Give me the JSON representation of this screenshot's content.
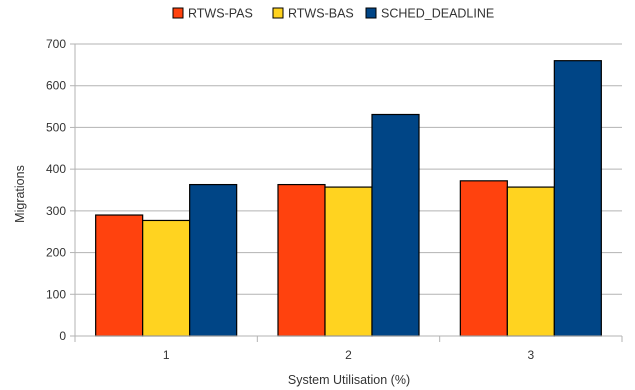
{
  "chart_data": {
    "type": "bar",
    "title": "",
    "xlabel": "System Utilisation (%)",
    "ylabel": "Migrations",
    "categories": [
      "1",
      "2",
      "3"
    ],
    "ylim": [
      0,
      700
    ],
    "yticks": [
      0,
      100,
      200,
      300,
      400,
      500,
      600,
      700
    ],
    "grid": true,
    "legend_position": "top",
    "series": [
      {
        "name": "RTWS-PAS",
        "color": "#ff420e",
        "values": [
          290,
          363,
          372
        ]
      },
      {
        "name": "RTWS-BAS",
        "color": "#ffd320",
        "values": [
          277,
          357,
          357
        ]
      },
      {
        "name": "SCHED_DEADLINE",
        "color": "#004586",
        "values": [
          363,
          531,
          660
        ]
      }
    ]
  }
}
